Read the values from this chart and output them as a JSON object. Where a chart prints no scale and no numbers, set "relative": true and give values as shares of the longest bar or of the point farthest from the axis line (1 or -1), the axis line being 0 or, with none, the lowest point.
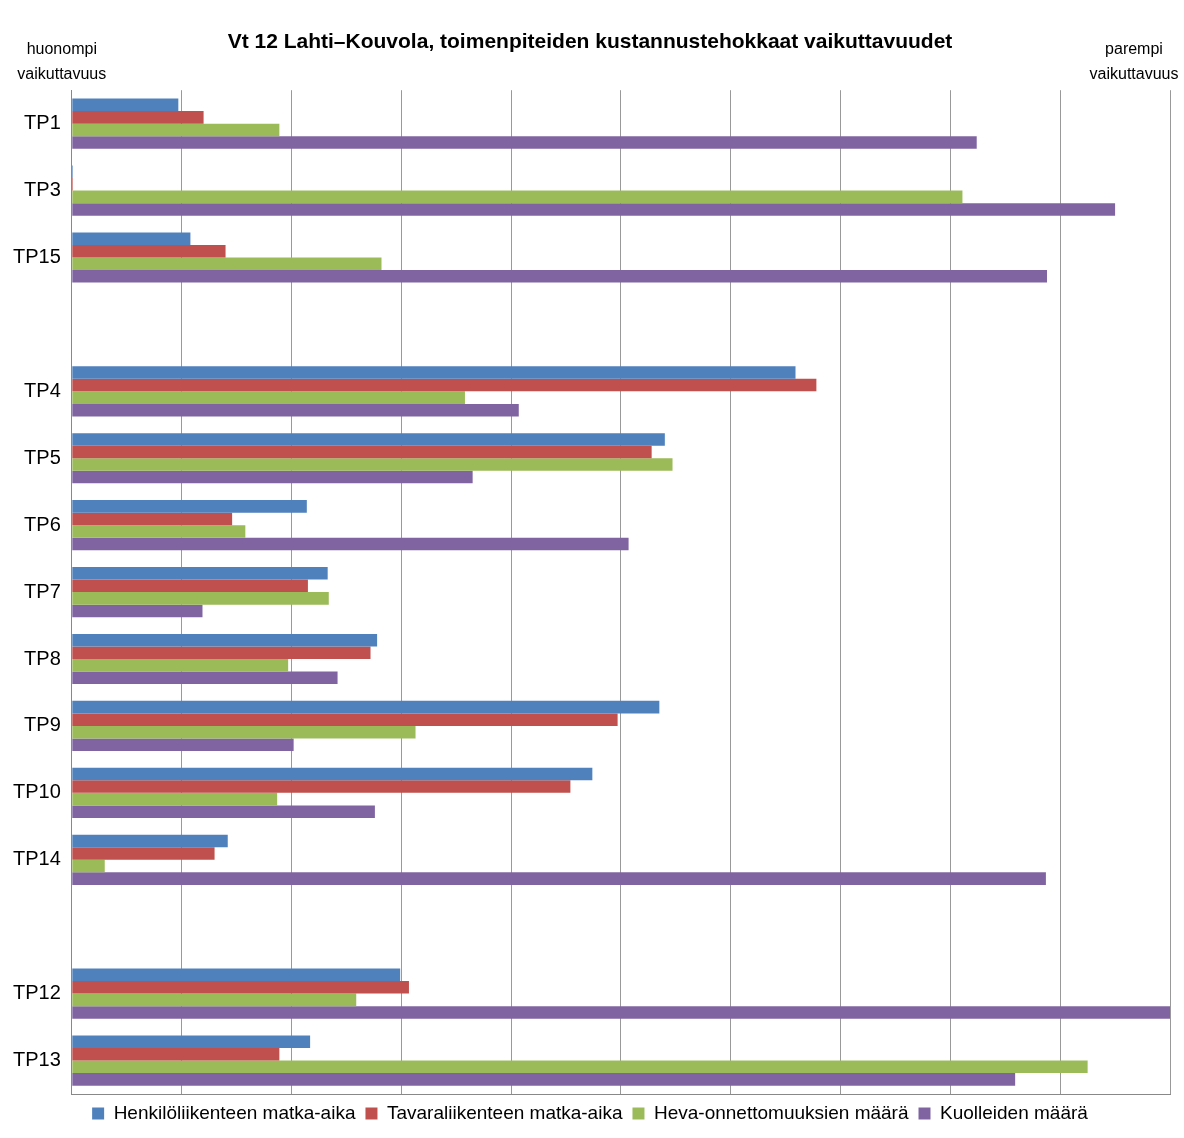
{
  "chart_data": {
    "type": "bar",
    "orientation": "horizontal",
    "relative": true,
    "title": "Vt 12 Lahti–Kouvola, toimenpiteiden kustannustehokkaat vaikuttavuudet",
    "annotations": [
      "huonompi vaikuttavuus",
      "parempi vaikuttavuus"
    ],
    "categories": [
      "TP1",
      "TP3",
      "TP15",
      null,
      "TP4",
      "TP5",
      "TP6",
      "TP7",
      "TP8",
      "TP9",
      "TP10",
      "TP14",
      null,
      "TP12",
      "TP13"
    ],
    "series": [
      {
        "name": "Henkilöliikenteen matka-aika",
        "color": "#4f81bd",
        "values": [
          0.097,
          0.001,
          0.108,
          null,
          0.659,
          0.54,
          0.214,
          0.233,
          0.278,
          0.535,
          0.474,
          0.142,
          null,
          0.299,
          0.217
        ]
      },
      {
        "name": "Tavaraliikenteen matka-aika",
        "color": "#c0504d",
        "values": [
          0.12,
          0.001,
          0.14,
          null,
          0.678,
          0.528,
          0.146,
          0.215,
          0.272,
          0.497,
          0.454,
          0.13,
          null,
          0.307,
          0.189
        ]
      },
      {
        "name": "Heva-onnettomuuksien määrä",
        "color": "#9bbb59",
        "values": [
          0.189,
          0.811,
          0.282,
          null,
          0.358,
          0.547,
          0.158,
          0.234,
          0.197,
          0.313,
          0.187,
          0.03,
          null,
          0.259,
          0.925
        ]
      },
      {
        "name": "Kuolleiden määrä",
        "color": "#8064a2",
        "values": [
          0.824,
          0.95,
          0.888,
          null,
          0.407,
          0.365,
          0.507,
          0.119,
          0.242,
          0.202,
          0.276,
          0.887,
          null,
          1,
          0.859
        ]
      }
    ],
    "grid": "x",
    "legend": "bottom"
  }
}
